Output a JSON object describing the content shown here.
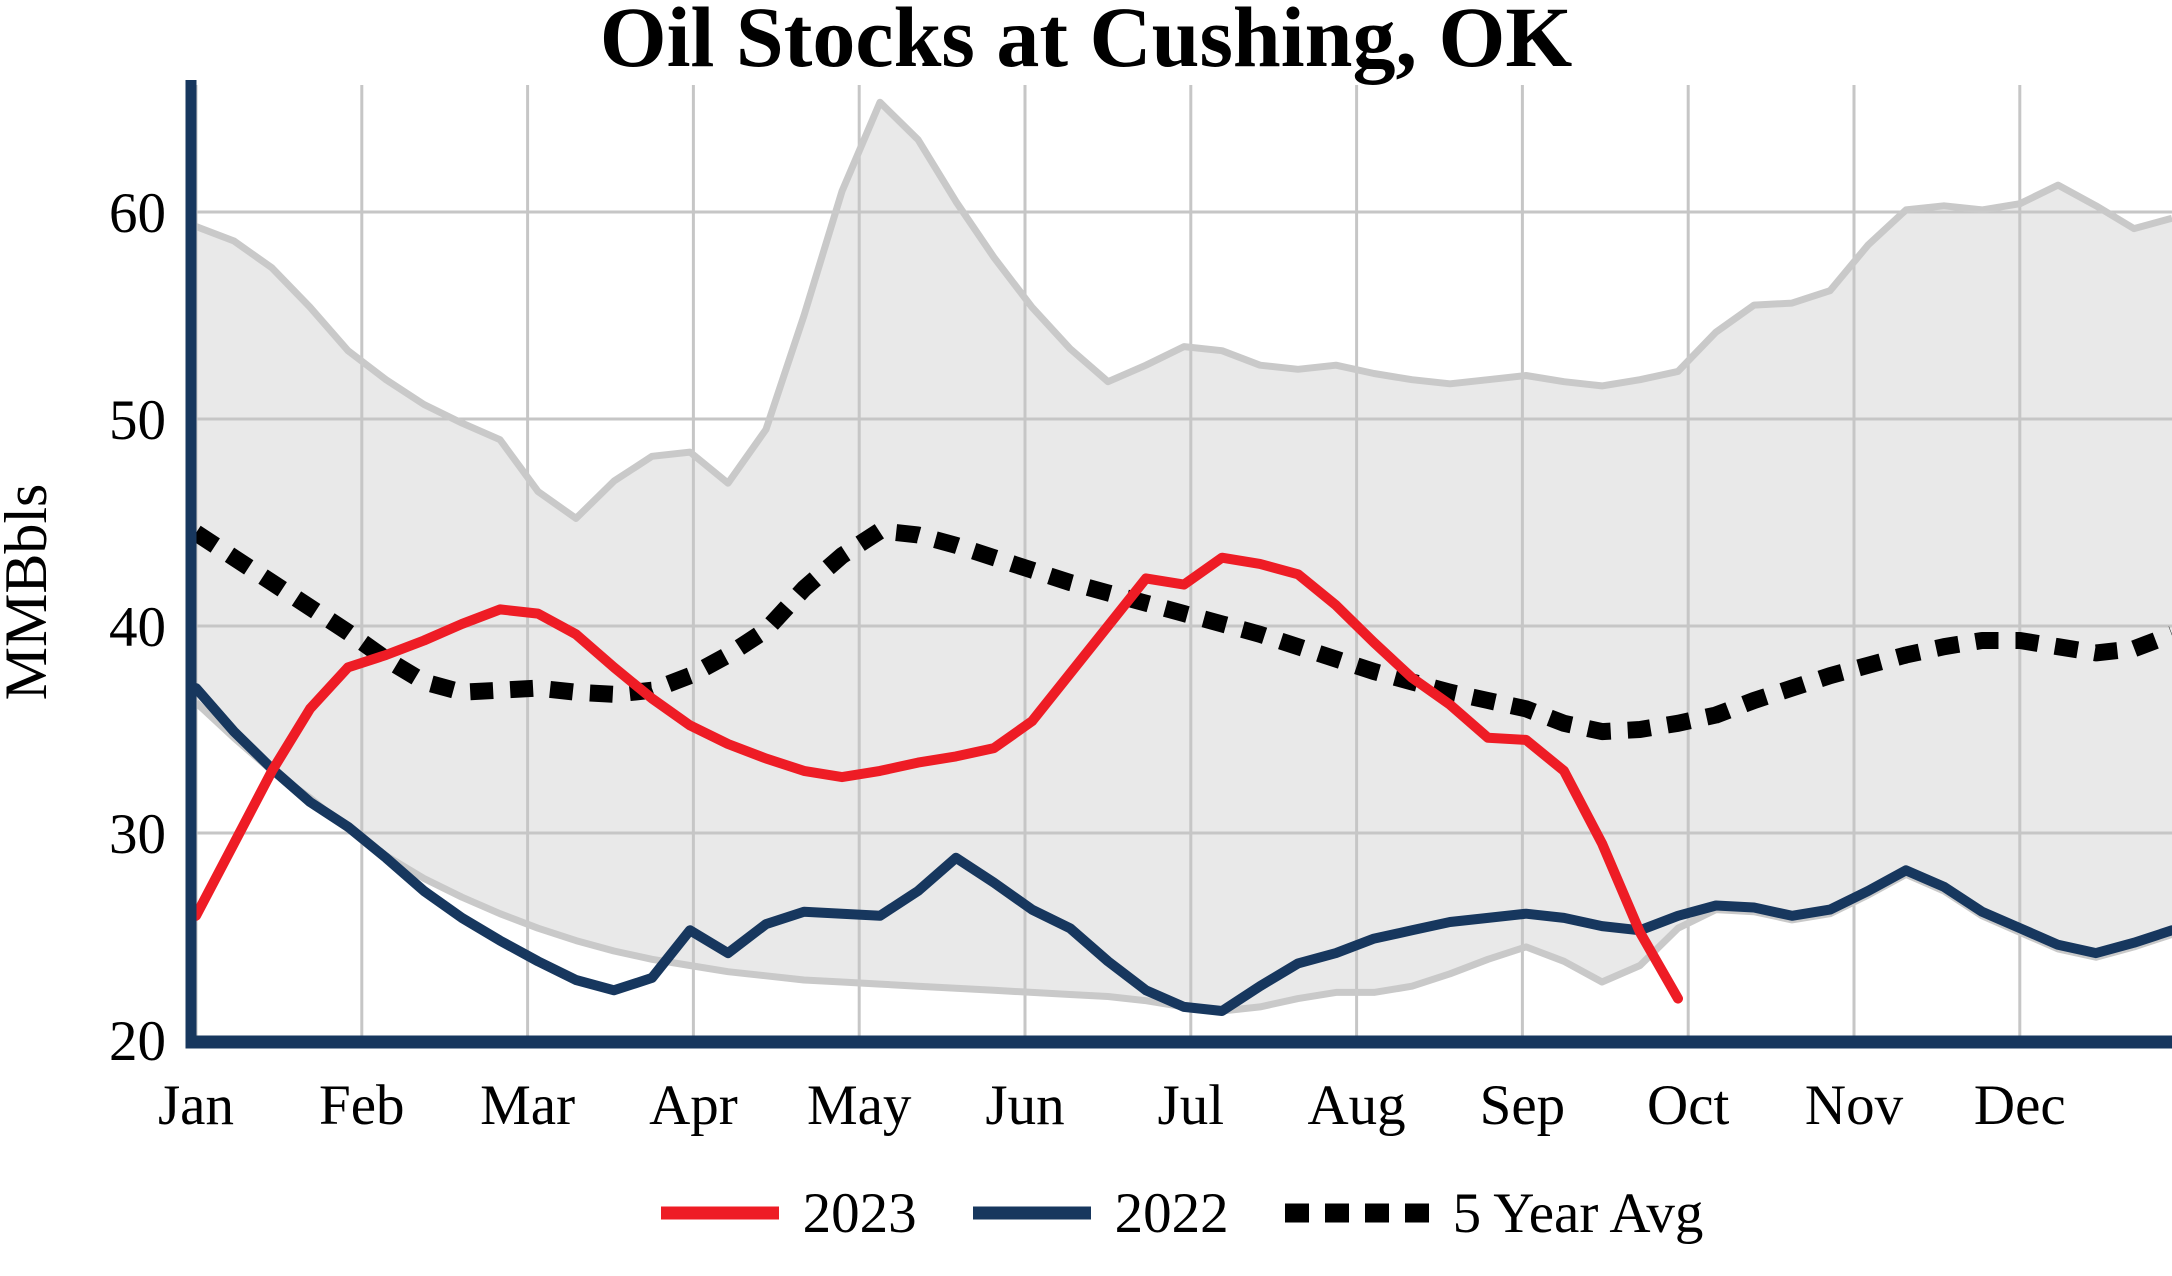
{
  "title": "Oil Stocks at Cushing, OK",
  "axes": {
    "y_label": "MMBbls",
    "y_ticks": [
      20,
      30,
      40,
      50,
      60
    ],
    "x_ticks": [
      "Jan",
      "Feb",
      "Mar",
      "Apr",
      "May",
      "Jun",
      "Jul",
      "Aug",
      "Sep",
      "Oct",
      "Nov",
      "Dec"
    ]
  },
  "legend": [
    {
      "label": "2023",
      "style": "solid",
      "color": "#EE1C25"
    },
    {
      "label": "2022",
      "style": "solid",
      "color": "#17375E"
    },
    {
      "label": "5 Year Avg",
      "style": "dotted",
      "color": "#000000"
    }
  ],
  "colors": {
    "red": "#EE1C25",
    "navy": "#17375E",
    "dotted": "#000000",
    "band_fill": "#E9E9E9",
    "band_edge": "#C9C9C9",
    "grid": "#C6C6C6",
    "axis": "#17375E",
    "background": "#FFFFFF"
  },
  "chart_data": {
    "type": "line",
    "title": "Oil Stocks at Cushing, OK",
    "xlabel": "",
    "ylabel": "MMBbls",
    "x_resolution": "weekly (52 weeks, Jan-Dec)",
    "categories": [
      "Jan",
      "Feb",
      "Mar",
      "Apr",
      "May",
      "Jun",
      "Jul",
      "Aug",
      "Sep",
      "Oct",
      "Nov",
      "Dec"
    ],
    "ylim": [
      20,
      65
    ],
    "grid": true,
    "legend_position": "bottom",
    "series": [
      {
        "name": "2023",
        "color": "#EE1C25",
        "line_style": "solid",
        "unit": "MMBbl",
        "note": "data ends late September",
        "values": [
          26.0,
          29.5,
          33.0,
          36.0,
          38.0,
          38.6,
          39.3,
          40.1,
          40.8,
          40.6,
          39.6,
          38.0,
          36.5,
          35.2,
          34.3,
          33.6,
          33.0,
          32.7,
          33.0,
          33.4,
          33.7,
          34.1,
          35.4,
          37.7,
          40.0,
          42.3,
          42.0,
          43.3,
          43.0,
          42.5,
          41.0,
          39.2,
          37.5,
          36.2,
          34.6,
          34.5,
          33.0,
          29.5,
          25.2,
          22.0
        ]
      },
      {
        "name": "2022",
        "color": "#17375E",
        "line_style": "solid",
        "unit": "MMBbl",
        "values": [
          37.0,
          34.9,
          33.1,
          31.5,
          30.3,
          28.8,
          27.2,
          25.9,
          24.8,
          23.8,
          22.9,
          22.4,
          23.0,
          25.3,
          24.2,
          25.6,
          26.2,
          26.1,
          26.0,
          27.2,
          28.8,
          27.6,
          26.3,
          25.4,
          23.8,
          22.4,
          21.6,
          21.4,
          22.6,
          23.7,
          24.2,
          24.9,
          25.3,
          25.7,
          25.9,
          26.1,
          25.9,
          25.5,
          25.3,
          26.0,
          26.5,
          26.4,
          26.0,
          26.3,
          27.2,
          28.2,
          27.4,
          26.2,
          25.4,
          24.6,
          24.2,
          24.7,
          25.3
        ]
      },
      {
        "name": "5 Year Avg",
        "color": "#000000",
        "line_style": "dotted",
        "unit": "MMBbl",
        "values": [
          44.5,
          43.3,
          42.1,
          40.9,
          39.7,
          38.4,
          37.3,
          36.8,
          36.9,
          37.0,
          36.8,
          36.7,
          36.9,
          37.6,
          38.6,
          39.8,
          41.8,
          43.4,
          44.6,
          44.4,
          43.9,
          43.3,
          42.7,
          42.1,
          41.6,
          41.1,
          40.6,
          40.1,
          39.6,
          39.0,
          38.4,
          37.8,
          37.3,
          36.8,
          36.4,
          36.0,
          35.3,
          34.9,
          35.0,
          35.3,
          35.7,
          36.4,
          37.0,
          37.6,
          38.1,
          38.6,
          39.0,
          39.3,
          39.3,
          39.0,
          38.7,
          38.9,
          39.6
        ]
      }
    ],
    "band": {
      "name": "5 Year Range",
      "fill": "#E9E9E9",
      "edge": "#C9C9C9",
      "upper": [
        59.3,
        58.6,
        57.3,
        55.4,
        53.3,
        51.9,
        50.7,
        49.8,
        49.0,
        46.5,
        45.2,
        47.0,
        48.2,
        48.4,
        46.9,
        49.5,
        55.0,
        61.0,
        65.3,
        63.5,
        60.5,
        57.8,
        55.4,
        53.4,
        51.8,
        52.6,
        53.5,
        53.3,
        52.6,
        52.4,
        52.6,
        52.2,
        51.9,
        51.7,
        51.9,
        52.1,
        51.8,
        51.6,
        51.9,
        52.3,
        54.2,
        55.5,
        55.6,
        56.2,
        58.4,
        60.1,
        60.3,
        60.1,
        60.4,
        61.3,
        60.3,
        59.2,
        59.7
      ],
      "lower": [
        36.3,
        34.6,
        33.0,
        31.7,
        30.2,
        28.9,
        27.8,
        26.9,
        26.1,
        25.4,
        24.8,
        24.3,
        23.9,
        23.6,
        23.3,
        23.1,
        22.9,
        22.8,
        22.7,
        22.6,
        22.5,
        22.4,
        22.3,
        22.2,
        22.1,
        21.9,
        21.6,
        21.4,
        21.6,
        22.0,
        22.3,
        22.3,
        22.6,
        23.2,
        23.9,
        24.5,
        23.8,
        22.8,
        23.6,
        25.4,
        26.3,
        26.2,
        25.8,
        26.1,
        27.0,
        28.0,
        27.2,
        26.0,
        25.2,
        24.4,
        24.0,
        24.5,
        25.1
      ]
    }
  }
}
